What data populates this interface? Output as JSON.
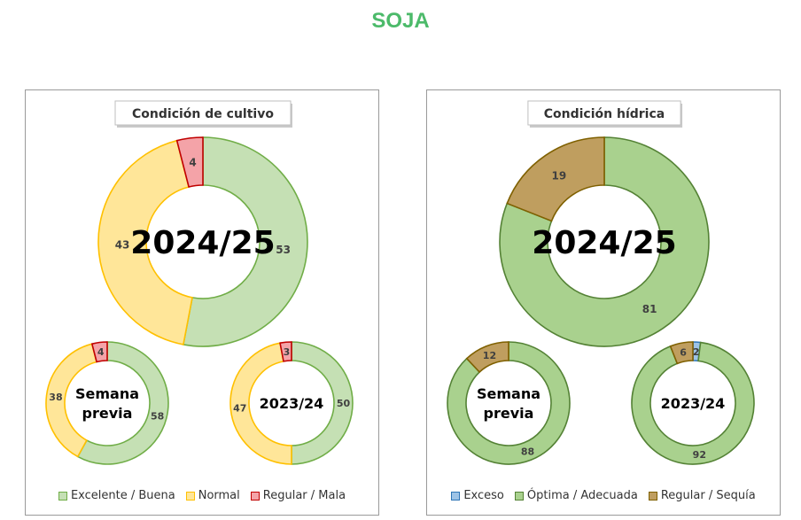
{
  "title": "SOJA",
  "chart_data": [
    {
      "type": "pie",
      "title": "Condición de cultivo",
      "legend_position": "bottom",
      "categories": [
        "Excelente / Buena",
        "Normal",
        "Regular / Mala"
      ],
      "colors": [
        "#c5e0b4",
        "#ffe699",
        "#f4a3a8"
      ],
      "stroke_colors": [
        "#70ad47",
        "#ffc000",
        "#c00000"
      ],
      "rings": [
        {
          "label": "2024/25",
          "values": [
            53,
            43,
            4
          ]
        },
        {
          "label": "Semana previa",
          "label_lines": [
            "Semana",
            "previa"
          ],
          "values": [
            58,
            38,
            4
          ]
        },
        {
          "label": "2023/24",
          "values": [
            50,
            47,
            3
          ]
        }
      ]
    },
    {
      "type": "pie",
      "title": "Condición hídrica",
      "legend_position": "bottom",
      "categories": [
        "Exceso",
        "Óptima / Adecuada",
        "Regular / Sequía"
      ],
      "colors": [
        "#9dc3e6",
        "#a9d18e",
        "#bf9e5f"
      ],
      "stroke_colors": [
        "#2e75b6",
        "#548235",
        "#7f6000"
      ],
      "rings": [
        {
          "label": "2024/25",
          "values": [
            0,
            81,
            19
          ]
        },
        {
          "label": "Semana previa",
          "label_lines": [
            "Semana",
            "previa"
          ],
          "values": [
            0,
            88,
            12
          ]
        },
        {
          "label": "2023/24",
          "values": [
            2,
            92,
            6
          ]
        }
      ]
    }
  ]
}
